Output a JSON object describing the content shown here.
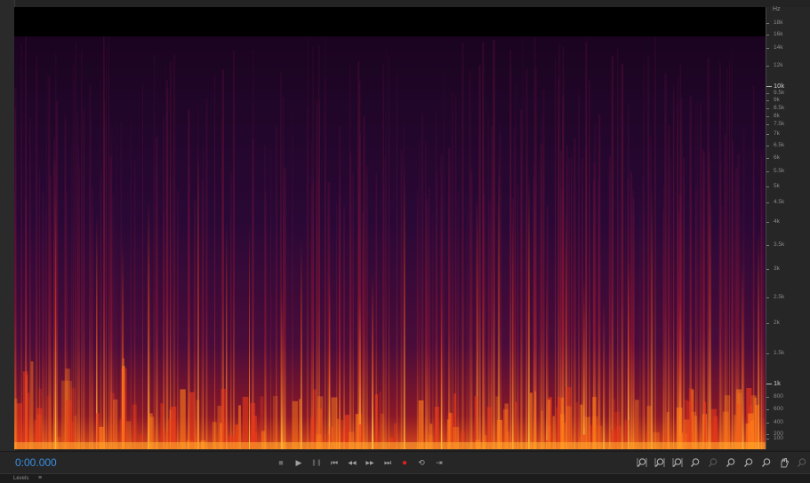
{
  "transport": {
    "time": "0:00.000"
  },
  "frequency_ruler": {
    "unit": "Hz",
    "ticks": [
      {
        "label": "18k",
        "major": false
      },
      {
        "label": "16k",
        "major": false
      },
      {
        "label": "14k",
        "major": false
      },
      {
        "label": "12k",
        "major": false
      },
      {
        "label": "10k",
        "major": true
      },
      {
        "label": "9.5k",
        "major": false
      },
      {
        "label": "9k",
        "major": false
      },
      {
        "label": "8.5k",
        "major": false
      },
      {
        "label": "8k",
        "major": false
      },
      {
        "label": "7.5k",
        "major": false
      },
      {
        "label": "7k",
        "major": false
      },
      {
        "label": "6.5k",
        "major": false
      },
      {
        "label": "6k",
        "major": false
      },
      {
        "label": "5.5k",
        "major": false
      },
      {
        "label": "5k",
        "major": false
      },
      {
        "label": "4.5k",
        "major": false
      },
      {
        "label": "4k",
        "major": false
      },
      {
        "label": "3.5k",
        "major": false
      },
      {
        "label": "3k",
        "major": false
      },
      {
        "label": "2.5k",
        "major": false
      },
      {
        "label": "2k",
        "major": false
      },
      {
        "label": "1.5k",
        "major": false
      },
      {
        "label": "1k",
        "major": true
      },
      {
        "label": "800",
        "major": false
      },
      {
        "label": "600",
        "major": false
      },
      {
        "label": "400",
        "major": false
      },
      {
        "label": "200",
        "major": false
      },
      {
        "label": "100",
        "major": false
      }
    ]
  },
  "transport_buttons": [
    {
      "name": "stop-button",
      "icon": "stop-icon",
      "glyph": "■"
    },
    {
      "name": "play-button",
      "icon": "play-icon",
      "glyph": "▶"
    },
    {
      "name": "pause-button",
      "icon": "pause-icon",
      "glyph": "❚❚"
    },
    {
      "name": "go-to-start-button",
      "icon": "skip-back-icon",
      "glyph": "⏮"
    },
    {
      "name": "rewind-button",
      "icon": "rewind-icon",
      "glyph": "◀◀"
    },
    {
      "name": "fast-forward-button",
      "icon": "fast-forward-icon",
      "glyph": "▶▶"
    },
    {
      "name": "go-to-end-button",
      "icon": "skip-forward-icon",
      "glyph": "⏭"
    },
    {
      "name": "record-button",
      "icon": "record-icon",
      "glyph": "●"
    },
    {
      "name": "loop-button",
      "icon": "loop-icon",
      "glyph": "⟲"
    },
    {
      "name": "skip-selection-button",
      "icon": "skip-selection-icon",
      "glyph": "⇥"
    }
  ],
  "zoom_buttons": [
    {
      "name": "zoom-in-amplitude-button",
      "icon": "zoom-in-amplitude-icon"
    },
    {
      "name": "zoom-out-amplitude-button",
      "icon": "zoom-out-amplitude-icon"
    },
    {
      "name": "zoom-in-time-button",
      "icon": "zoom-in-time-icon"
    },
    {
      "name": "zoom-out-full-button",
      "icon": "zoom-out-full-icon"
    },
    {
      "name": "zoom-selection-button",
      "icon": "zoom-selection-icon"
    },
    {
      "name": "zoom-in-point-button",
      "icon": "zoom-in-point-icon"
    },
    {
      "name": "zoom-out-point-button",
      "icon": "zoom-out-point-icon"
    },
    {
      "name": "zoom-full-button",
      "icon": "zoom-full-icon"
    },
    {
      "name": "hand-tool-button",
      "icon": "hand-icon"
    },
    {
      "name": "zoom-disabled-button",
      "icon": "zoom-disabled-icon"
    }
  ],
  "levels": {
    "label": "Levels",
    "menu_glyph": "≡"
  },
  "colors": {
    "accent_time": "#3a8fe0",
    "record_red": "#e02020"
  }
}
